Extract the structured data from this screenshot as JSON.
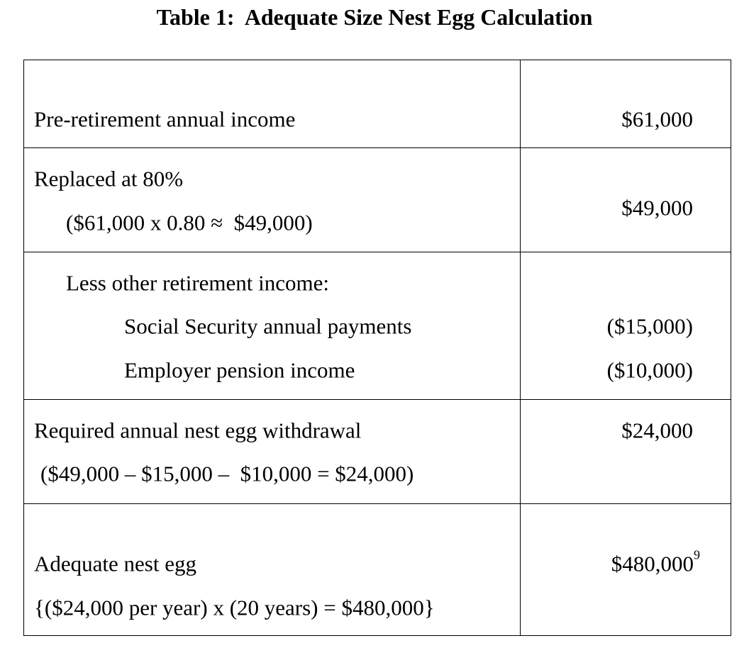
{
  "title": "Table 1:  Adequate Size Nest Egg Calculation",
  "table": {
    "rows": [
      {
        "lines": [
          "Pre-retirement annual income"
        ],
        "value": "$61,000"
      },
      {
        "lines": [
          "Replaced at 80%",
          "($61,000 x 0.80 ≈  $49,000)"
        ],
        "value": "$49,000"
      },
      {
        "lines": [
          "Less other retirement income:",
          "Social Security annual payments",
          "Employer pension income"
        ],
        "values": [
          "($15,000)",
          "($10,000)"
        ]
      },
      {
        "lines": [
          "Required annual nest egg withdrawal",
          "($49,000 – $15,000 –  $10,000 = $24,000)"
        ],
        "value": "$24,000"
      },
      {
        "lines": [
          "Adequate nest egg",
          "{($24,000 per year) x (20 years) = $480,000}"
        ],
        "value": "$480,000",
        "footnote": "9"
      }
    ]
  }
}
